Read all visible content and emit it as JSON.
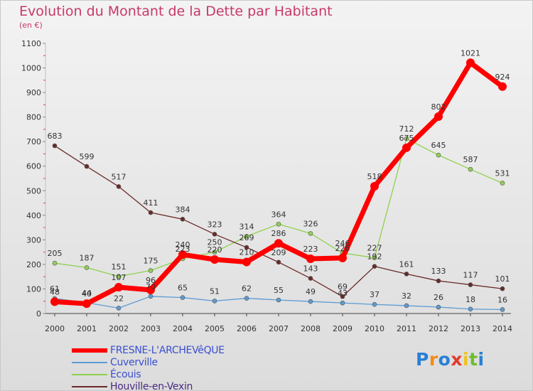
{
  "chart_data": {
    "type": "line",
    "title": "Evolution du Montant de la Dette par Habitant",
    "subtitle": "(en €)",
    "ylim": [
      0,
      1100
    ],
    "yticks": [
      0,
      100,
      200,
      300,
      400,
      500,
      600,
      700,
      800,
      900,
      1000,
      1100
    ],
    "grid": false,
    "legend_position": "bottom-left",
    "categories": [
      "2000",
      "2001",
      "2002",
      "2003",
      "2004",
      "2005",
      "2006",
      "2007",
      "2008",
      "2009",
      "2010",
      "2011",
      "2012",
      "2013",
      "2014"
    ],
    "series": [
      {
        "name": "FRESNE-L'ARCHEVêQUE",
        "color": "#ff0000",
        "values": [
          48,
          40,
          107,
          96,
          240,
          220,
          210,
          286,
          223,
          226,
          518,
          675,
          802,
          1021,
          924
        ]
      },
      {
        "name": "Cuverville",
        "color": "#5b9bd5",
        "values": [
          61,
          44,
          22,
          70,
          65,
          51,
          62,
          55,
          49,
          43,
          37,
          32,
          26,
          18,
          16
        ]
      },
      {
        "name": "Écouis",
        "color": "#8fd14f",
        "values": [
          205,
          187,
          151,
          175,
          223,
          250,
          314,
          364,
          326,
          246,
          227,
          712,
          645,
          587,
          531
        ]
      },
      {
        "name": "Houville-en-Vexin",
        "color": "#6b2a2a",
        "values": [
          683,
          599,
          517,
          411,
          384,
          323,
          269,
          209,
          143,
          69,
          192,
          161,
          133,
          117,
          101
        ]
      }
    ]
  },
  "logo": {
    "letters": [
      "P",
      "r",
      "o",
      "x",
      "i",
      "t",
      "i"
    ],
    "colors": [
      "#2a7fd4",
      "#f28c1a",
      "#2a7fd4",
      "#e23a2e",
      "#f2c21a",
      "#6cbf2a",
      "#2a7fd4"
    ]
  }
}
